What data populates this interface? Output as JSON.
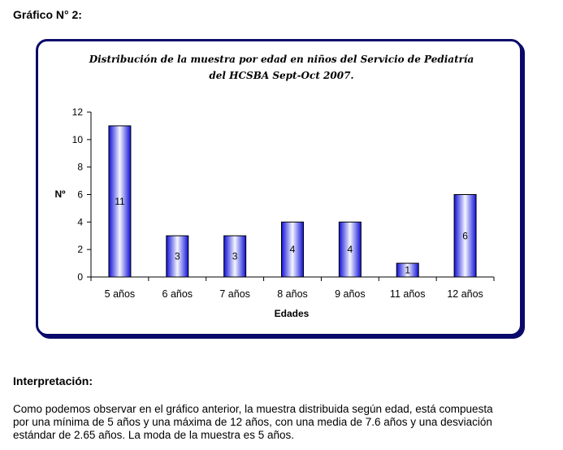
{
  "heading": "Gráfico N° 2:",
  "chart_data": {
    "type": "bar",
    "title_lines": [
      "Distribución de la muestra por edad en niños del Servicio de Pediatría",
      "del HCSBA Sept-Oct 2007."
    ],
    "xlabel": "Edades",
    "ylabel": "Nº",
    "ylim": [
      0,
      12
    ],
    "yticks": [
      0,
      2,
      4,
      6,
      8,
      10,
      12
    ],
    "categories": [
      "5 años",
      "6 años",
      "7 años",
      "8 años",
      "9 años",
      "11 años",
      "12 años"
    ],
    "values": [
      11,
      3,
      3,
      4,
      4,
      1,
      6
    ],
    "data_labels": [
      "11",
      "3",
      "3",
      "4",
      "4",
      "1",
      "6"
    ],
    "bar_color": "#1a1aee",
    "grid": false,
    "legend": "none"
  },
  "section": {
    "heading": "Interpretación:",
    "paragraph_lines": [
      "Como podemos observar en el gráfico anterior, la muestra distribuida según edad, está compuesta",
      "por una mínima de 5 años y una máxima de 12 años, con una media de 7.6 años y una desviación",
      "estándar de 2.65 años. La moda de la muestra es 5 años."
    ]
  }
}
